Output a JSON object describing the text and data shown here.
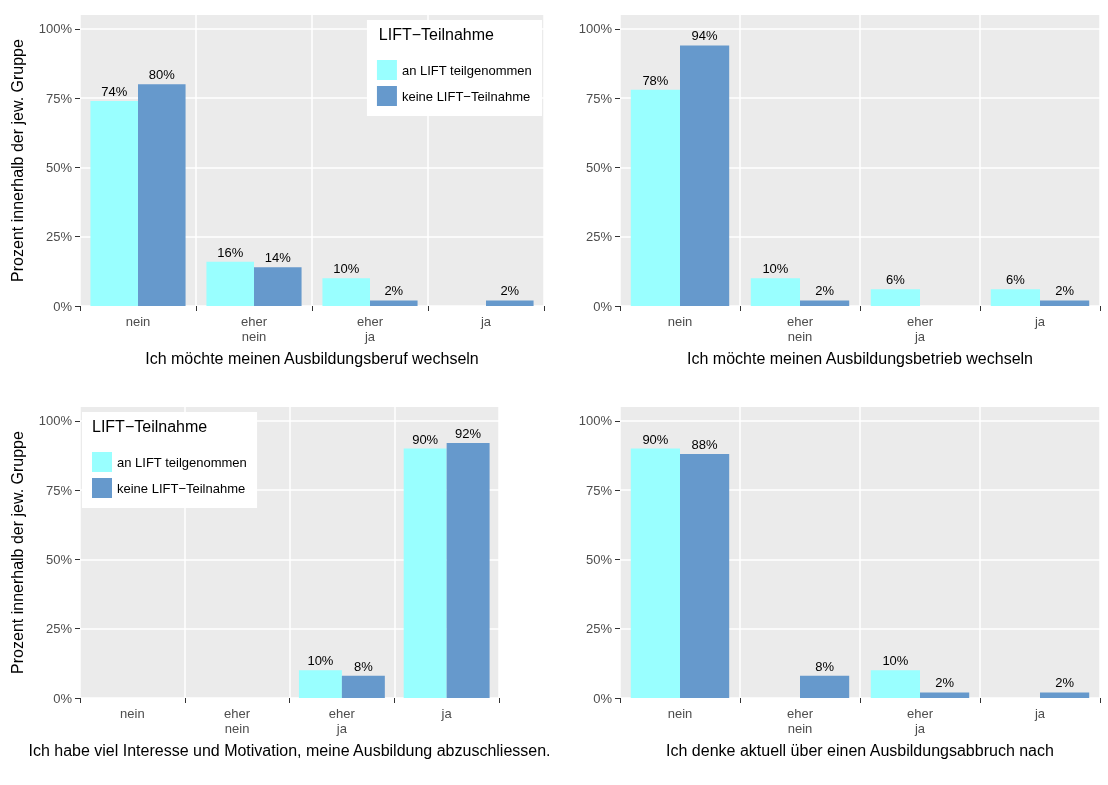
{
  "chart_data": [
    {
      "type": "bar",
      "xlabel": "Ich möchte meinen Ausbildungsberuf wechseln",
      "ylabel": "Prozent innerhalb der jew. Gruppe",
      "categories": [
        "nein",
        "eher\nnein",
        "eher\nja",
        "ja"
      ],
      "ylim": [
        0,
        105
      ],
      "yticks": [
        {
          "value": 0,
          "label": "0%"
        },
        {
          "value": 25,
          "label": "25%"
        },
        {
          "value": 50,
          "label": "50%"
        },
        {
          "value": 75,
          "label": "75%"
        },
        {
          "value": 100,
          "label": "100%"
        }
      ],
      "grid": true,
      "legend": "top right",
      "legend_title": "LIFT−Teilnahme",
      "series": [
        {
          "name": "an LIFT teilgenommen",
          "color": "#99ffff",
          "values": [
            74,
            16,
            10,
            null
          ],
          "value_labels": [
            "74%",
            "16%",
            "10%",
            null
          ]
        },
        {
          "name": "keine LIFT−Teilnahme",
          "color": "#6699cc",
          "values": [
            80,
            14,
            2,
            2
          ],
          "value_labels": [
            "80%",
            "14%",
            "2%",
            "2%"
          ]
        }
      ]
    },
    {
      "type": "bar",
      "xlabel": "Ich möchte meinen Ausbildungsbetrieb wechseln",
      "categories": [
        "nein",
        "eher\nnein",
        "eher\nja",
        "ja"
      ],
      "ylim": [
        0,
        105
      ],
      "yticks": [
        {
          "value": 0,
          "label": "0%"
        },
        {
          "value": 25,
          "label": "25%"
        },
        {
          "value": 50,
          "label": "50%"
        },
        {
          "value": 75,
          "label": "75%"
        },
        {
          "value": 100,
          "label": "100%"
        }
      ],
      "grid": true,
      "series": [
        {
          "color": "#99ffff",
          "values": [
            78,
            10,
            6,
            6
          ],
          "value_labels": [
            "78%",
            "10%",
            "6%",
            "6%"
          ]
        },
        {
          "color": "#6699cc",
          "values": [
            94,
            2,
            null,
            2
          ],
          "value_labels": [
            "94%",
            "2%",
            null,
            "2%"
          ]
        }
      ]
    },
    {
      "type": "bar",
      "xlabel": "Ich habe viel Interesse und Motivation, meine Ausbildung abzuschliessen.",
      "ylabel": "Prozent innerhalb der jew. Gruppe",
      "categories": [
        "nein",
        "eher\nnein",
        "eher\nja",
        "ja"
      ],
      "ylim": [
        0,
        105
      ],
      "yticks": [
        {
          "value": 0,
          "label": "0%"
        },
        {
          "value": 25,
          "label": "25%"
        },
        {
          "value": 50,
          "label": "50%"
        },
        {
          "value": 75,
          "label": "75%"
        },
        {
          "value": 100,
          "label": "100%"
        }
      ],
      "grid": true,
      "legend": "top left",
      "legend_title": "LIFT−Teilnahme",
      "series": [
        {
          "name": "an LIFT teilgenommen",
          "color": "#99ffff",
          "values": [
            null,
            null,
            10,
            90
          ],
          "value_labels": [
            null,
            null,
            "10%",
            "90%"
          ]
        },
        {
          "name": "keine LIFT−Teilnahme",
          "color": "#6699cc",
          "values": [
            null,
            null,
            8,
            92
          ],
          "value_labels": [
            null,
            null,
            "8%",
            "92%"
          ]
        }
      ]
    },
    {
      "type": "bar",
      "xlabel": "Ich denke aktuell über einen Ausbildungsabbruch nach",
      "categories": [
        "nein",
        "eher\nnein",
        "eher\nja",
        "ja"
      ],
      "ylim": [
        0,
        105
      ],
      "yticks": [
        {
          "value": 0,
          "label": "0%"
        },
        {
          "value": 25,
          "label": "25%"
        },
        {
          "value": 50,
          "label": "50%"
        },
        {
          "value": 75,
          "label": "75%"
        },
        {
          "value": 100,
          "label": "100%"
        }
      ],
      "grid": true,
      "series": [
        {
          "color": "#99ffff",
          "values": [
            90,
            null,
            10,
            null
          ],
          "value_labels": [
            "90%",
            null,
            "10%",
            null
          ]
        },
        {
          "color": "#6699cc",
          "values": [
            88,
            8,
            2,
            2
          ],
          "value_labels": [
            "88%",
            "8%",
            "2%",
            "2%"
          ]
        }
      ]
    }
  ]
}
